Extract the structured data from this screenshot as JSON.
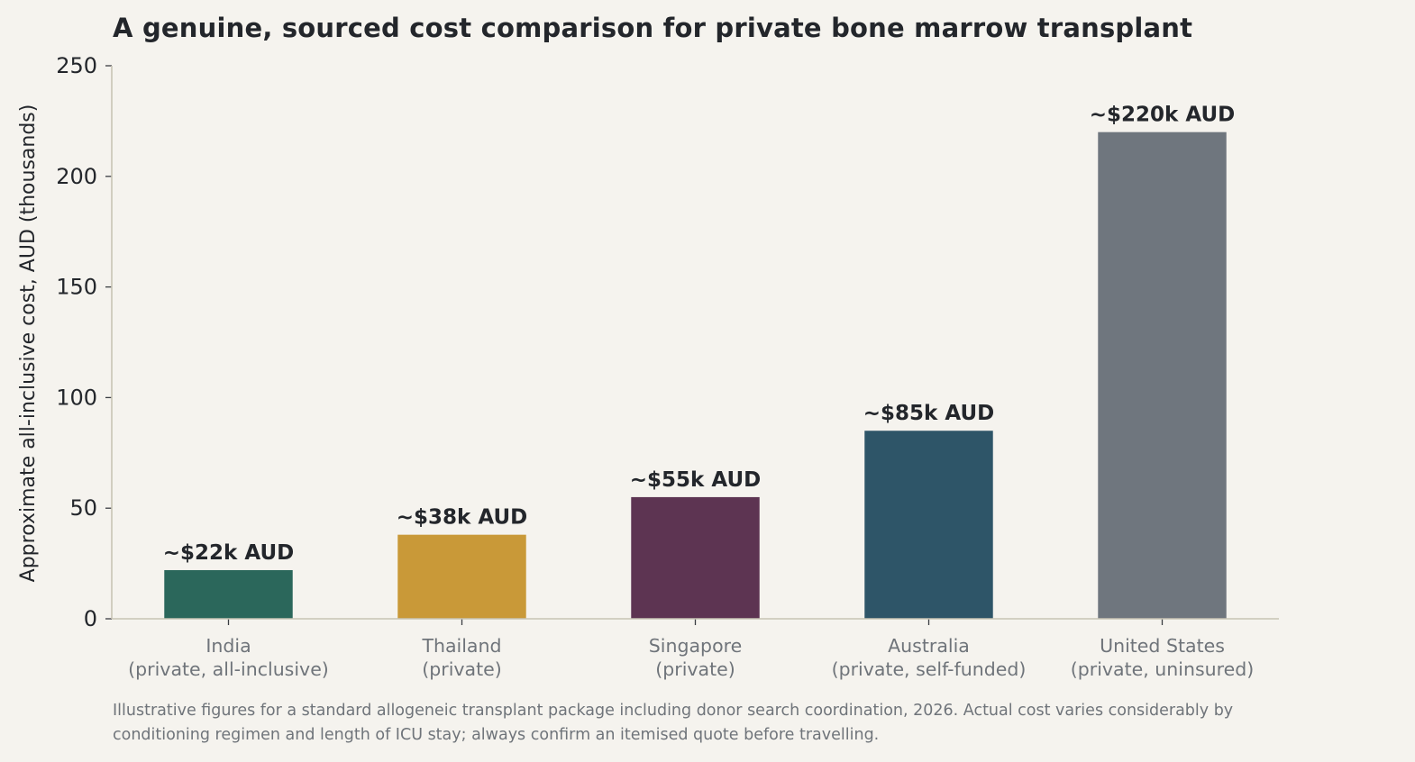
{
  "chart_data": {
    "type": "bar",
    "title": "A genuine, sourced cost comparison for private bone marrow transplant",
    "ylabel": "Approximate all-inclusive cost, AUD (thousands)",
    "xlabel": "",
    "ylim": [
      0,
      250
    ],
    "yticks": [
      0,
      50,
      100,
      150,
      200,
      250
    ],
    "grid": false,
    "categories": [
      [
        "India",
        "(private, all-inclusive)"
      ],
      [
        "Thailand",
        "(private)"
      ],
      [
        "Singapore",
        "(private)"
      ],
      [
        "Australia",
        "(private, self-funded)"
      ],
      [
        "United States",
        "(private, uninsured)"
      ]
    ],
    "values": [
      22,
      38,
      55,
      85,
      220
    ],
    "data_labels": [
      "~$22k AUD",
      "~$38k AUD",
      "~$55k AUD",
      "~$85k AUD",
      "~$220k AUD"
    ],
    "colors": [
      "#2b675b",
      "#c99938",
      "#5d3452",
      "#2e5568",
      "#6f767e"
    ]
  },
  "footnote": {
    "line1": "Illustrative figures for a standard allogeneic transplant package including donor search coordination, 2026. Actual cost varies considerably by",
    "line2": "conditioning regimen and length of ICU stay; always confirm an itemised quote before travelling."
  },
  "style": {
    "background": "#f5f3ee",
    "axis_color": "#c8c4b4",
    "text_color": "#23262b",
    "muted_text": "#6f747a"
  }
}
